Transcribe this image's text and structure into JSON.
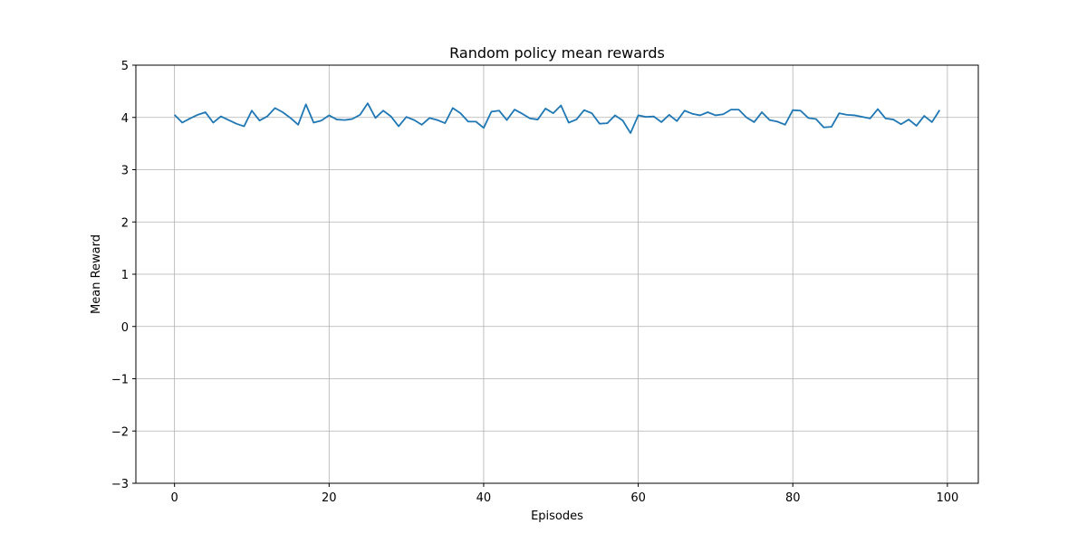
{
  "chart_data": {
    "type": "line",
    "title": "Random policy mean rewards",
    "xlabel": "Episodes",
    "ylabel": "Mean Reward",
    "xlim": [
      -5,
      104
    ],
    "ylim": [
      -3,
      5
    ],
    "xticks": [
      0,
      20,
      40,
      60,
      80,
      100
    ],
    "yticks": [
      -3,
      -2,
      -1,
      0,
      1,
      2,
      3,
      4,
      5
    ],
    "xtick_labels": [
      "0",
      "20",
      "40",
      "60",
      "80",
      "100"
    ],
    "ytick_labels": [
      "−3",
      "−2",
      "−1",
      "0",
      "1",
      "2",
      "3",
      "4",
      "5"
    ],
    "grid": true,
    "series": [
      {
        "color": "#1f77b4",
        "x": [
          0,
          1,
          2,
          3,
          4,
          5,
          6,
          7,
          8,
          9,
          10,
          11,
          12,
          13,
          14,
          15,
          16,
          17,
          18,
          19,
          20,
          21,
          22,
          23,
          24,
          25,
          26,
          27,
          28,
          29,
          30,
          31,
          32,
          33,
          34,
          35,
          36,
          37,
          38,
          39,
          40,
          41,
          42,
          43,
          44,
          45,
          46,
          47,
          48,
          49,
          50,
          51,
          52,
          53,
          54,
          55,
          56,
          57,
          58,
          59,
          60,
          61,
          62,
          63,
          64,
          65,
          66,
          67,
          68,
          69,
          70,
          71,
          72,
          73,
          74,
          75,
          76,
          77,
          78,
          79,
          80,
          81,
          82,
          83,
          84,
          85,
          86,
          87,
          88,
          89,
          90,
          91,
          92,
          93,
          94,
          95,
          96,
          97,
          98,
          99
        ],
        "y": [
          4.05,
          3.9,
          3.98,
          4.05,
          4.1,
          3.9,
          4.02,
          3.95,
          3.88,
          3.83,
          4.13,
          3.94,
          4.02,
          4.18,
          4.1,
          3.99,
          3.86,
          4.25,
          3.9,
          3.94,
          4.04,
          3.96,
          3.95,
          3.97,
          4.05,
          4.27,
          3.99,
          4.13,
          4.02,
          3.83,
          4.01,
          3.95,
          3.86,
          3.99,
          3.95,
          3.89,
          4.18,
          4.08,
          3.92,
          3.92,
          3.8,
          4.11,
          4.13,
          3.95,
          4.15,
          4.07,
          3.98,
          3.96,
          4.17,
          4.08,
          4.23,
          3.9,
          3.96,
          4.14,
          4.08,
          3.88,
          3.89,
          4.04,
          3.94,
          3.7,
          4.04,
          4.01,
          4.02,
          3.91,
          4.05,
          3.93,
          4.13,
          4.07,
          4.04,
          4.1,
          4.04,
          4.06,
          4.15,
          4.15,
          4.0,
          3.91,
          4.1,
          3.95,
          3.92,
          3.86,
          4.14,
          4.13,
          3.99,
          3.97,
          3.81,
          3.82,
          4.08,
          4.05,
          4.04,
          4.01,
          3.98,
          4.16,
          3.98,
          3.96,
          3.87,
          3.96,
          3.84,
          4.03,
          3.91,
          4.14
        ]
      }
    ]
  }
}
